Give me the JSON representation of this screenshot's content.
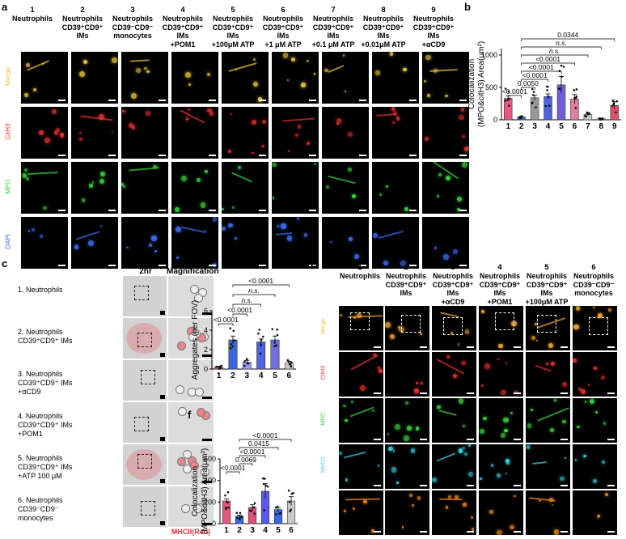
{
  "panel_a": {
    "label": "a",
    "columns": [
      {
        "num": "1",
        "title": "Neutrophils"
      },
      {
        "num": "2",
        "title": "Neutrophils\nCD39⁺CD9⁺\nIMs"
      },
      {
        "num": "3",
        "title": "Neutrophils\nCD39⁻CD9⁻\nmonocytes"
      },
      {
        "num": "4",
        "title": "Neutrophils\nCD39⁺CD9⁺\nIMs\n+POM1"
      },
      {
        "num": "5",
        "title": "Neutrophils\nCD39⁺CD9⁺\nIMs\n+100μM ATP"
      },
      {
        "num": "6",
        "title": "Neutrophils\nCD39⁺CD9⁺\nIMs\n+1 μM ATP"
      },
      {
        "num": "7",
        "title": "Neutrophils\nCD39⁺CD9⁺\nIMs\n+0.1 μM ATP"
      },
      {
        "num": "8",
        "title": "Neutrophils\nCD39⁺CD9⁺\nIMs\n+0.01μM ATP"
      },
      {
        "num": "9",
        "title": "Neutrophils\nCD39⁺CD9⁺\nIMs\n+αCD9"
      }
    ],
    "rows": [
      {
        "label": "Merge",
        "color": "#e8c23a"
      },
      {
        "label": "CitH3",
        "color": "#e83030"
      },
      {
        "label": "MPO",
        "color": "#3bd13b"
      },
      {
        "label": "DAPI",
        "color": "#3a6cf0"
      }
    ]
  },
  "panel_b": {
    "label": "b",
    "ylabel_line1": "Colocalization",
    "ylabel_line2": "(MPO&citH3) Area(μm²)",
    "pvalues": [
      "0.0344",
      "n.s.",
      "n.s.",
      "<0.0001",
      "<0.0001",
      "<0.0001",
      "0.0050",
      "<0.0001"
    ]
  },
  "panel_c": {
    "label": "c",
    "col1": "2hr",
    "col2": "Magnification",
    "rows": [
      "1. Neutrophils",
      "2. Neutrophils\nCD39⁺CD9⁺ IMs",
      "3. Neutrophils\nCD39⁺CD9⁺ IMs\n+αCD9",
      "4. Neutrophils\nCD39⁺CD9⁺ IMs\n+POM1",
      "5. Neutrophils\nCD39⁺CD9⁺ IMs\n+ATP 100 μM",
      "6. Neutrophils\nCD39⁻CD9⁻\nmonocytes"
    ],
    "footer": "MHCII(Red)"
  },
  "panel_d": {
    "label": "d",
    "ylabel": "Aggregates (per FOV)",
    "pvalues": [
      "<0.0001",
      "n.s.",
      "n.s.",
      "<0.0001",
      "<0.0001"
    ]
  },
  "panel_e": {
    "label": "e",
    "columns": [
      {
        "num": "1",
        "title": "Neutrophils"
      },
      {
        "num": "2",
        "title": "Neutrophils\nCD39⁺CD9⁺\nIMs"
      },
      {
        "num": "3",
        "title": "Neutrophils\nCD39⁺CD9⁺\nIMs\n+αCD9"
      },
      {
        "num": "4",
        "title": "Neutrophils\nCD39⁺CD9⁺\nIMs\n+POM1"
      },
      {
        "num": "5",
        "title": "Neutrophils\nCD39⁺CD9⁺\nIMs\n+100μM ATP"
      },
      {
        "num": "6",
        "title": "Neutrophils\nCD39⁻CD9⁻\nmonocytes"
      }
    ],
    "rows": [
      {
        "label": "Merge",
        "color": "#e8c23a"
      },
      {
        "label": "CitH3",
        "color": "#e83030"
      },
      {
        "label": "MPO",
        "color": "#3bd13b"
      },
      {
        "label": "MHCII",
        "color": "#3ad0e0"
      },
      {
        "label": "Magnification",
        "color": "#ffffff"
      }
    ]
  },
  "panel_f": {
    "label": "f",
    "ylabel_line1": "Colocalization",
    "ylabel_line2": "(MPO&citH3) Area(μm²)",
    "pvalues": [
      "<0.0001",
      "0.0415",
      "<0.0001",
      "0.0069",
      "<0.0001"
    ]
  },
  "chart_data": [
    {
      "type": "bar",
      "panel": "b",
      "categories": [
        "1",
        "2",
        "3",
        "4",
        "5",
        "6",
        "7",
        "8",
        "9"
      ],
      "values": [
        330,
        40,
        340,
        360,
        540,
        320,
        80,
        15,
        220
      ],
      "errors": [
        40,
        10,
        40,
        40,
        130,
        70,
        15,
        5,
        60
      ],
      "colors": [
        "#e8577f",
        "#3a67e0",
        "#9a9a9a",
        "#4f63e0",
        "#6f5fe0",
        "#e07fa0",
        "#c8c8c8",
        "#c8c8c8",
        "#e0506a"
      ],
      "yticks": [
        0,
        500,
        1000
      ],
      "ylim": [
        0,
        1100
      ]
    },
    {
      "type": "bar",
      "panel": "d",
      "categories": [
        "1",
        "2",
        "3",
        "4",
        "5",
        "6"
      ],
      "values": [
        0.2,
        3.0,
        0.7,
        2.8,
        3.0,
        0.6
      ],
      "errors": [
        0.1,
        0.4,
        0.2,
        0.3,
        0.4,
        0.2
      ],
      "colors": [
        "#e8577f",
        "#3a67e0",
        "#9a9aff",
        "#4f63e0",
        "#6f6fe0",
        "#c8c8c8"
      ],
      "yticks": [
        0,
        2,
        4,
        6
      ],
      "ylim": [
        0,
        6
      ]
    },
    {
      "type": "bar",
      "panel": "f",
      "categories": [
        "1",
        "2",
        "3",
        "4",
        "5",
        "6"
      ],
      "values": [
        210,
        70,
        150,
        300,
        130,
        210
      ],
      "errors": [
        20,
        10,
        25,
        70,
        20,
        40
      ],
      "colors": [
        "#e8577f",
        "#3a67e0",
        "#e0507a",
        "#5a5af0",
        "#3a67e0",
        "#c8c8c8"
      ],
      "yticks": [
        0,
        200,
        400,
        600
      ],
      "ylim": [
        0,
        600
      ]
    }
  ]
}
